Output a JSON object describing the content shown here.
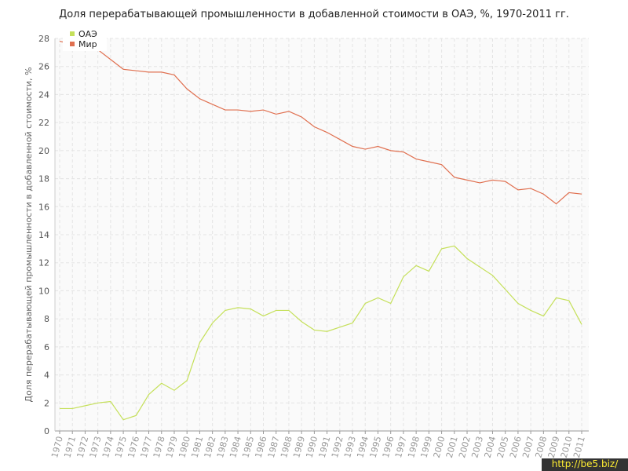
{
  "chart_data": {
    "type": "line",
    "title": "Доля перерабатывающей промышленности в добавленной стоимости в ОАЭ, %, 1970-2011 гг.",
    "y_label": "Доля перерабатывающей промышленности в добавленной стоимости, %",
    "watermark": "http://be5.biz/",
    "x": [
      1970,
      1971,
      1972,
      1973,
      1974,
      1975,
      1976,
      1977,
      1978,
      1979,
      1980,
      1981,
      1982,
      1983,
      1984,
      1985,
      1986,
      1987,
      1988,
      1989,
      1990,
      1991,
      1992,
      1993,
      1994,
      1995,
      1996,
      1997,
      1998,
      1999,
      2000,
      2001,
      2002,
      2003,
      2004,
      2005,
      2006,
      2007,
      2008,
      2009,
      2010,
      2011
    ],
    "xlim": [
      1970,
      2011
    ],
    "series": [
      {
        "name": "ОАЭ",
        "color": "#c5e05a",
        "values": [
          1.6,
          1.6,
          1.8,
          2.0,
          2.1,
          0.8,
          1.1,
          2.6,
          3.4,
          2.9,
          3.6,
          6.3,
          7.7,
          8.6,
          8.8,
          8.7,
          8.2,
          8.6,
          8.6,
          7.8,
          7.2,
          7.1,
          7.4,
          7.7,
          9.1,
          9.5,
          9.1,
          11.0,
          11.8,
          11.4,
          13.0,
          13.2,
          12.3,
          11.7,
          11.1,
          10.1,
          9.1,
          8.6,
          8.2,
          9.5,
          9.3,
          7.6
        ]
      },
      {
        "name": "Мир",
        "color": "#e07050",
        "values": [
          27.8,
          27.6,
          27.4,
          27.2,
          26.5,
          25.8,
          25.7,
          25.6,
          25.6,
          25.4,
          24.4,
          23.7,
          23.3,
          22.9,
          22.9,
          22.8,
          22.9,
          22.6,
          22.8,
          22.4,
          21.7,
          21.3,
          20.8,
          20.3,
          20.1,
          20.3,
          20.0,
          19.9,
          19.4,
          19.2,
          19.0,
          18.1,
          17.9,
          17.7,
          17.9,
          17.8,
          17.2,
          17.3,
          16.9,
          16.2,
          17.0,
          16.9
        ]
      }
    ],
    "ylim": [
      0,
      28
    ],
    "yticks": [
      0,
      2,
      4,
      6,
      8,
      10,
      12,
      14,
      16,
      18,
      20,
      22,
      24,
      26,
      28
    ],
    "grid": true,
    "legend": "top-left"
  }
}
